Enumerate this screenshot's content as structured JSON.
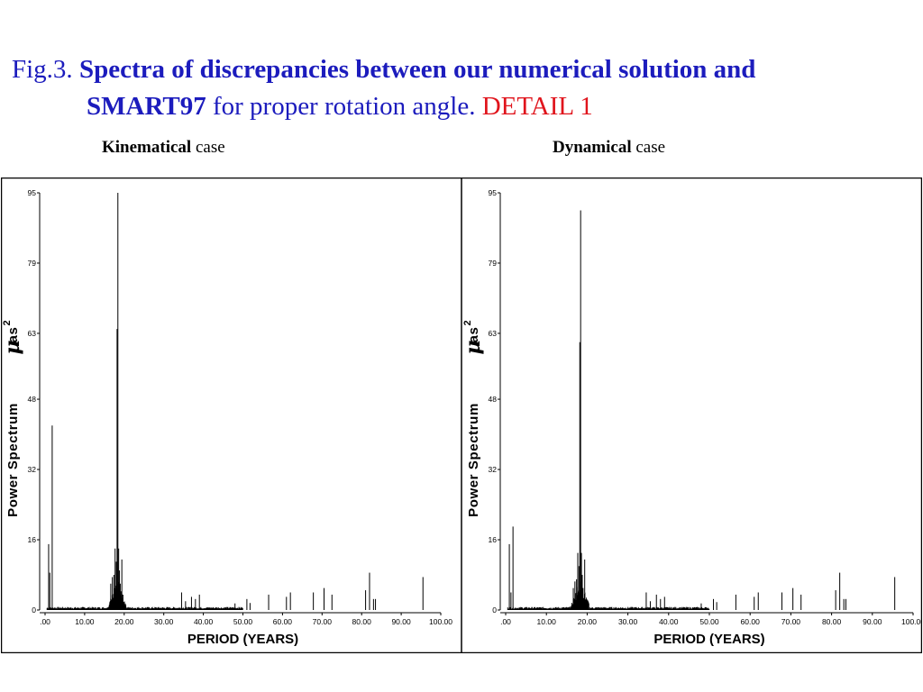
{
  "header": {
    "fig_label": "Fig.3.",
    "title_bold_1": "Spectra of discrepancies between our numerical solution and",
    "title_bold_2": "SMART97",
    "title_rest": "for proper rotation angle.",
    "detail": "DETAIL  1",
    "colors": {
      "title": "#1c1cbd",
      "detail": "#e0141c"
    }
  },
  "panels": [
    {
      "bold": "Kinematical",
      "rest": "case"
    },
    {
      "bold": "Dynamical",
      "rest": "case"
    }
  ],
  "chart_data": [
    {
      "type": "bar",
      "title": "Kinematical case",
      "xlabel": "PERIOD (YEARS)",
      "ylabel": "Power Spectrum",
      "ylabel_unit": "μas",
      "ylabel_unit_power": "2",
      "xlim": [
        0,
        100
      ],
      "ylim": [
        0,
        95
      ],
      "x_ticks": [
        0,
        10,
        20,
        30,
        40,
        50,
        60,
        70,
        80,
        90,
        100
      ],
      "x_tick_labels": [
        ".00",
        "10.00",
        "20.00",
        "30.00",
        "40.00",
        "50.00",
        "60.00",
        "70.00",
        "80.00",
        "90.00",
        "100.00"
      ],
      "y_ticks": [
        0,
        16,
        32,
        48,
        63,
        79,
        95
      ],
      "y_tick_labels": [
        "0",
        "16",
        "32",
        "48",
        "63",
        "79",
        "95"
      ],
      "grid": false,
      "peaks": [
        {
          "x": 0.9,
          "y": 15
        },
        {
          "x": 1.2,
          "y": 8.5
        },
        {
          "x": 1.8,
          "y": 42
        },
        {
          "x": 16.6,
          "y": 6
        },
        {
          "x": 17.0,
          "y": 7.5
        },
        {
          "x": 17.4,
          "y": 8
        },
        {
          "x": 17.7,
          "y": 14
        },
        {
          "x": 18.0,
          "y": 11
        },
        {
          "x": 18.2,
          "y": 64
        },
        {
          "x": 18.4,
          "y": 95
        },
        {
          "x": 18.6,
          "y": 14
        },
        {
          "x": 18.8,
          "y": 9
        },
        {
          "x": 19.0,
          "y": 6
        },
        {
          "x": 19.4,
          "y": 11.5
        },
        {
          "x": 20.0,
          "y": 1.2
        },
        {
          "x": 34.5,
          "y": 4
        },
        {
          "x": 35.5,
          "y": 2
        },
        {
          "x": 37.0,
          "y": 3
        },
        {
          "x": 38.0,
          "y": 2.5
        },
        {
          "x": 39.0,
          "y": 3.5
        },
        {
          "x": 48.0,
          "y": 1.5
        },
        {
          "x": 51.0,
          "y": 2.5
        },
        {
          "x": 51.8,
          "y": 1.6
        },
        {
          "x": 56.5,
          "y": 3.5
        },
        {
          "x": 61.0,
          "y": 3
        },
        {
          "x": 62.0,
          "y": 4
        },
        {
          "x": 67.8,
          "y": 4
        },
        {
          "x": 70.5,
          "y": 5
        },
        {
          "x": 72.5,
          "y": 3.5
        },
        {
          "x": 81.0,
          "y": 4.5
        },
        {
          "x": 82.0,
          "y": 8.5
        },
        {
          "x": 83.0,
          "y": 2.5
        },
        {
          "x": 83.5,
          "y": 2.5
        },
        {
          "x": 95.5,
          "y": 7.5
        }
      ]
    },
    {
      "type": "bar",
      "title": "Dynamical case",
      "xlabel": "PERIOD (YEARS)",
      "ylabel": "Power Spectrum",
      "ylabel_unit": "μas",
      "ylabel_unit_power": "2",
      "xlim": [
        0,
        100
      ],
      "ylim": [
        0,
        95
      ],
      "x_ticks": [
        0,
        10,
        20,
        30,
        40,
        50,
        60,
        70,
        80,
        90,
        100
      ],
      "x_tick_labels": [
        ".00",
        "10.00",
        "20.00",
        "30.00",
        "40.00",
        "50.00",
        "60.00",
        "70.00",
        "80.00",
        "90.00",
        "100.00"
      ],
      "y_ticks": [
        0,
        16,
        32,
        48,
        63,
        79,
        95
      ],
      "y_tick_labels": [
        "0",
        "16",
        "32",
        "48",
        "63",
        "79",
        "95"
      ],
      "grid": false,
      "peaks": [
        {
          "x": 0.9,
          "y": 15
        },
        {
          "x": 1.3,
          "y": 4
        },
        {
          "x": 1.8,
          "y": 19
        },
        {
          "x": 16.6,
          "y": 5
        },
        {
          "x": 17.0,
          "y": 6.5
        },
        {
          "x": 17.4,
          "y": 7
        },
        {
          "x": 17.7,
          "y": 13
        },
        {
          "x": 18.0,
          "y": 10
        },
        {
          "x": 18.2,
          "y": 61
        },
        {
          "x": 18.4,
          "y": 91
        },
        {
          "x": 18.6,
          "y": 13
        },
        {
          "x": 18.8,
          "y": 8
        },
        {
          "x": 19.0,
          "y": 5
        },
        {
          "x": 19.4,
          "y": 11.5
        },
        {
          "x": 20.0,
          "y": 1
        },
        {
          "x": 34.5,
          "y": 4
        },
        {
          "x": 35.5,
          "y": 2
        },
        {
          "x": 37.0,
          "y": 3.5
        },
        {
          "x": 38.0,
          "y": 2.5
        },
        {
          "x": 39.0,
          "y": 3
        },
        {
          "x": 48.0,
          "y": 1.5
        },
        {
          "x": 51.0,
          "y": 2.5
        },
        {
          "x": 51.8,
          "y": 1.8
        },
        {
          "x": 56.5,
          "y": 3.5
        },
        {
          "x": 61.0,
          "y": 3
        },
        {
          "x": 62.0,
          "y": 4
        },
        {
          "x": 67.8,
          "y": 4
        },
        {
          "x": 70.5,
          "y": 5
        },
        {
          "x": 72.5,
          "y": 3.5
        },
        {
          "x": 81.0,
          "y": 4.5
        },
        {
          "x": 82.0,
          "y": 8.5
        },
        {
          "x": 83.0,
          "y": 2.5
        },
        {
          "x": 83.5,
          "y": 2.5
        },
        {
          "x": 95.5,
          "y": 7.5
        }
      ]
    }
  ]
}
